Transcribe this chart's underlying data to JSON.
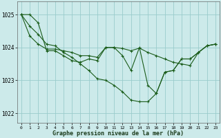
{
  "x": [
    0,
    1,
    2,
    3,
    4,
    5,
    6,
    7,
    8,
    9,
    10,
    11,
    12,
    13,
    14,
    15,
    16,
    17,
    18,
    19,
    20,
    21,
    22,
    23
  ],
  "line_zigzag": [
    1025.0,
    1025.0,
    1024.75,
    1023.9,
    1023.9,
    1023.75,
    1023.6,
    1023.55,
    1023.65,
    1023.6,
    1024.0,
    1024.0,
    1023.75,
    1023.3,
    1024.0,
    1022.85,
    1022.6,
    1023.25,
    1023.3,
    1023.65,
    1023.65,
    1023.85,
    1024.05,
    1024.1
  ],
  "line_steep": [
    1025.0,
    1024.65,
    1024.4,
    1024.1,
    1024.05,
    1023.85,
    1023.7,
    1023.5,
    1023.3,
    1023.05,
    1023.0,
    1022.85,
    1022.65,
    1022.4,
    1022.35,
    1022.35,
    1022.6,
    1023.25,
    1023.3,
    1023.65,
    1023.65,
    1023.85,
    1024.05,
    1024.1
  ],
  "line_flat": [
    1025.0,
    1024.35,
    1024.1,
    1023.95,
    1023.95,
    1023.9,
    1023.85,
    1023.75,
    1023.75,
    1023.7,
    1024.0,
    1024.0,
    1023.97,
    1023.9,
    1023.98,
    1023.85,
    1023.75,
    1023.65,
    1023.55,
    1023.5,
    1023.45,
    1023.85,
    1024.05,
    1024.1
  ],
  "bg_color": "#cceaea",
  "line_color": "#1a5c1a",
  "grid_color": "#99cccc",
  "xlabel": "Graphe pression niveau de la mer (hPa)",
  "ylim": [
    1021.7,
    1025.4
  ],
  "xlim": [
    -0.5,
    23.5
  ],
  "yticks": [
    1022,
    1023,
    1024,
    1025
  ],
  "xticks": [
    0,
    1,
    2,
    3,
    4,
    5,
    6,
    7,
    8,
    9,
    10,
    11,
    12,
    13,
    14,
    15,
    16,
    17,
    18,
    19,
    20,
    21,
    22,
    23
  ]
}
